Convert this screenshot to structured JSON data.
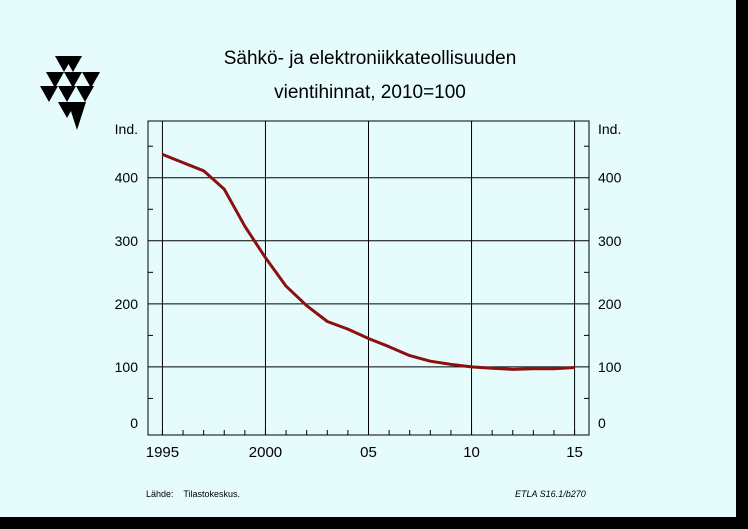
{
  "page": {
    "title_line1": "Sähkö- ja elektroniikkateollisuuden",
    "title_line2": "vientihinnat, 2010=100",
    "source_label": "Lähde:",
    "source_value": "Tilastokeskus.",
    "code": "ETLA S16.1/b270",
    "logo": "etla-triangle-logo"
  },
  "colors": {
    "background": "#e6fbfc",
    "line": "#8b1010",
    "frame": "#000000"
  },
  "chart_data": {
    "type": "line",
    "title": "Sähkö- ja elektroniikkateollisuuden vientihinnat, 2010=100",
    "ylabel_left": "Ind.",
    "ylabel_right": "Ind.",
    "xlim": [
      1994.3,
      2015.7
    ],
    "ylim": [
      -8,
      490
    ],
    "x_ticks": [
      {
        "value": 1995,
        "label": "1995"
      },
      {
        "value": 2000,
        "label": "2000"
      },
      {
        "value": 2005,
        "label": "05"
      },
      {
        "value": 2010,
        "label": "10"
      },
      {
        "value": 2015,
        "label": "15"
      }
    ],
    "y_ticks": [
      {
        "value": 0,
        "label": "0"
      },
      {
        "value": 100,
        "label": "100"
      },
      {
        "value": 200,
        "label": "200"
      },
      {
        "value": 300,
        "label": "300"
      },
      {
        "value": 400,
        "label": "400"
      }
    ],
    "grid": true,
    "series": [
      {
        "points": [
          [
            1995.0,
            437
          ],
          [
            1996.0,
            424
          ],
          [
            1997.0,
            411
          ],
          [
            1998.0,
            382
          ],
          [
            1999.0,
            323
          ],
          [
            2000.0,
            273
          ],
          [
            2001.0,
            228
          ],
          [
            2002.0,
            197
          ],
          [
            2003.0,
            172
          ],
          [
            2004.0,
            160
          ],
          [
            2005.0,
            145
          ],
          [
            2006.0,
            132
          ],
          [
            2007.0,
            118
          ],
          [
            2008.0,
            109
          ],
          [
            2009.0,
            104
          ],
          [
            2010.0,
            100
          ],
          [
            2011.0,
            98
          ],
          [
            2012.0,
            96
          ],
          [
            2013.0,
            97
          ],
          [
            2014.0,
            97
          ],
          [
            2015.0,
            99
          ]
        ]
      }
    ]
  }
}
